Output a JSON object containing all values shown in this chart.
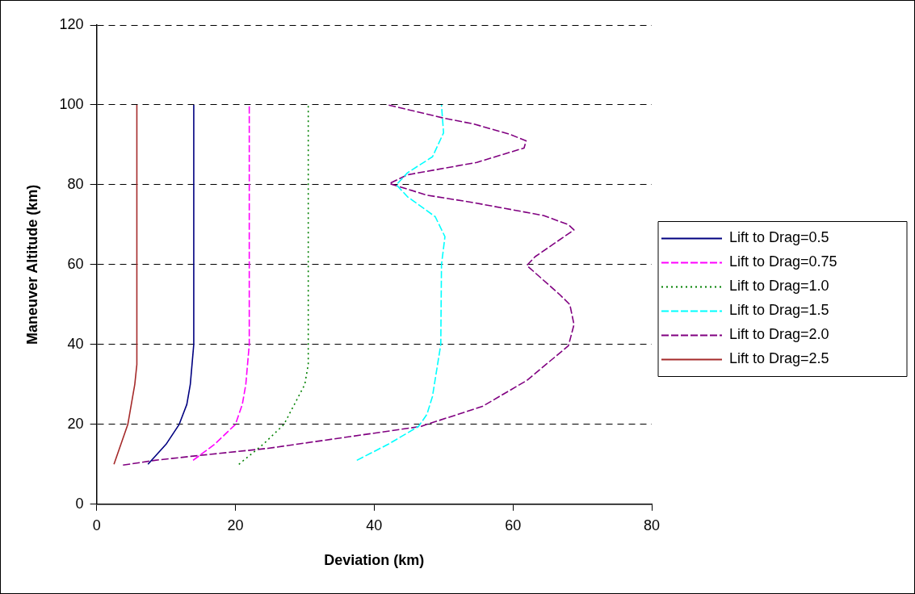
{
  "chart_data": {
    "type": "line",
    "xlabel": "Deviation (km)",
    "ylabel": "Maneuver Altitude (km)",
    "xlim": [
      0,
      80
    ],
    "xticks": [
      0,
      20,
      40,
      60,
      80
    ],
    "ylim": [
      0,
      120
    ],
    "yticks": [
      0,
      20,
      40,
      60,
      80,
      100,
      120
    ],
    "grid": "y",
    "legend": "right",
    "marker": "none",
    "series": [
      {
        "name": "Lift to Drag=0.5",
        "color": "#000080",
        "line_style": "solid",
        "x": [
          7.4,
          10,
          11.9,
          13,
          13.5,
          14,
          14
        ],
        "values": [
          10,
          15,
          20,
          25,
          30,
          40,
          100
        ]
      },
      {
        "name": "Lift to Drag=0.75",
        "color": "#ff00ff",
        "line_style": "dashed",
        "x": [
          13.9,
          17,
          20,
          21,
          21.5,
          22,
          22
        ],
        "values": [
          11,
          15,
          20,
          25,
          30,
          40,
          100
        ]
      },
      {
        "name": "Lift to Drag=1.0",
        "color": "#008000",
        "line_style": "dotted",
        "x": [
          20.5,
          24,
          27,
          28.5,
          30,
          30.5,
          30.5
        ],
        "values": [
          10,
          15,
          20,
          25,
          30,
          35,
          100
        ]
      },
      {
        "name": "Lift to Drag=1.5",
        "color": "#00ffff",
        "line_style": "dashed",
        "x": [
          37.5,
          42,
          46.4,
          47.6,
          48.4,
          49.6,
          49.7,
          50.2,
          48.8,
          44.8,
          43.2,
          44.8,
          48.4,
          50,
          49.7
        ],
        "values": [
          11,
          15,
          19.5,
          22.5,
          27,
          40,
          60,
          67,
          72,
          77,
          80,
          83,
          87,
          93,
          100
        ]
      },
      {
        "name": "Lift to Drag=2.0",
        "color": "#800080",
        "line_style": "dashed",
        "x": [
          3.8,
          8.4,
          13.6,
          24.7,
          40.8,
          46.8,
          47.6,
          55.6,
          62,
          68,
          68.8,
          68.2,
          66.8,
          62,
          63.2,
          68.8,
          68,
          64.4,
          54.4,
          47.6,
          42.2,
          44.8,
          54.8,
          61.6,
          61.9,
          59.6,
          54.4,
          50,
          42
        ],
        "values": [
          9.8,
          11,
          12,
          14,
          18,
          19.5,
          20,
          24.5,
          31,
          39.7,
          45,
          50,
          52.4,
          59.8,
          62,
          68.7,
          70,
          72.3,
          75.5,
          77.4,
          80.3,
          82.5,
          85.6,
          89.2,
          91,
          92.6,
          95.2,
          96.7,
          100
        ]
      },
      {
        "name": "Lift to Drag=2.5",
        "color": "#a52a2a",
        "line_style": "solid",
        "x": [
          2.5,
          3.5,
          4.5,
          5.5,
          5.8,
          5.8
        ],
        "values": [
          10,
          15,
          20,
          30,
          35,
          100
        ]
      }
    ]
  }
}
